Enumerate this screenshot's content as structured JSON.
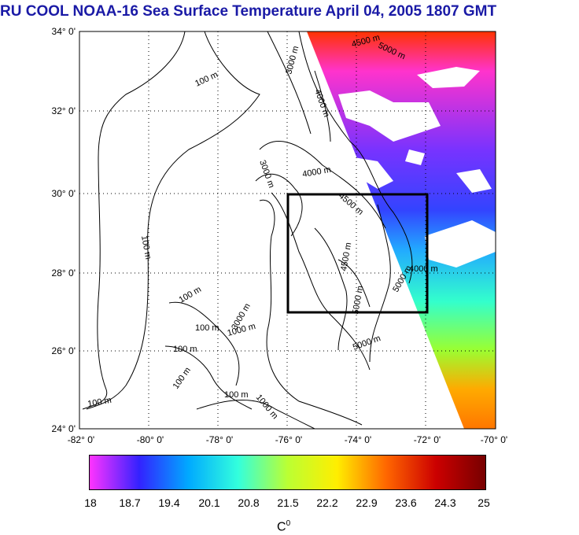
{
  "title": "RU COOL  NOAA-16 Sea Surface Temperature April 04, 2005 1807 GMT",
  "map": {
    "lat_labels": [
      "34° 0'",
      "32° 0'",
      "30° 0'",
      "28° 0'",
      "26° 0'",
      "24° 0'"
    ],
    "lon_labels": [
      "-82° 0'",
      "-80° 0'",
      "-78° 0'",
      "-76° 0'",
      "-74° 0'",
      "-72° 0'",
      "-70° 0'"
    ],
    "contour_labels": [
      "100 m",
      "100 m",
      "100 m",
      "100 m",
      "100 m",
      "100 m",
      "100 m",
      "100 m",
      "1000 m",
      "1000 m",
      "3000 m",
      "3000 m",
      "3000 m",
      "4000 m",
      "4000 m",
      "4000 m",
      "4500 m",
      "4500 m",
      "4500 m",
      "5000 m",
      "5000 m",
      "5000 m",
      "5000 m"
    ],
    "region_box": {
      "lon_min": -76,
      "lon_max": -72,
      "lat_min": 27,
      "lat_max": 30
    }
  },
  "colorbar": {
    "ticks": [
      "18",
      "18.7",
      "19.4",
      "20.1",
      "20.8",
      "21.5",
      "22.2",
      "22.9",
      "23.6",
      "24.3",
      "25"
    ],
    "unit": "C",
    "unit_sup": "0",
    "colors": [
      "#ff33ff",
      "#3322ff",
      "#00aaff",
      "#33ffdd",
      "#bbff33",
      "#ffee00",
      "#ff6600",
      "#cc0000",
      "#770000"
    ]
  }
}
